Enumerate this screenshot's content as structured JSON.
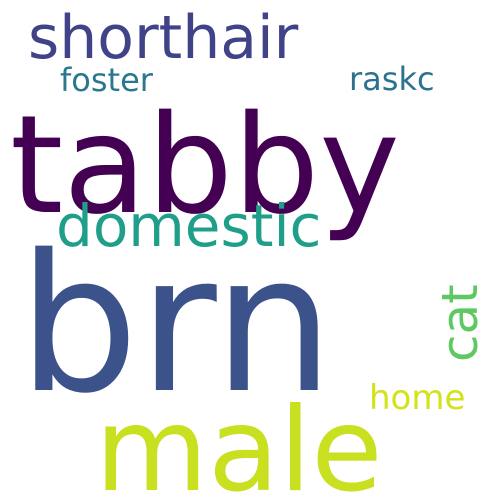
{
  "words": [
    {
      "text": "tabby",
      "color": "#440154",
      "rotation": "horizontal"
    },
    {
      "text": "brn",
      "color": "#3b528b",
      "rotation": "horizontal"
    },
    {
      "text": "male",
      "color": "#c8e020",
      "rotation": "horizontal"
    },
    {
      "text": "shorthair",
      "color": "#404387",
      "rotation": "horizontal"
    },
    {
      "text": "domestic",
      "color": "#1f9e89",
      "rotation": "horizontal"
    },
    {
      "text": "cat",
      "color": "#5ec962",
      "rotation": "vertical"
    },
    {
      "text": "foster",
      "color": "#2a788e",
      "rotation": "horizontal"
    },
    {
      "text": "raskc",
      "color": "#2c728e",
      "rotation": "horizontal"
    },
    {
      "text": "home",
      "color": "#d2e21b",
      "rotation": "horizontal"
    }
  ]
}
